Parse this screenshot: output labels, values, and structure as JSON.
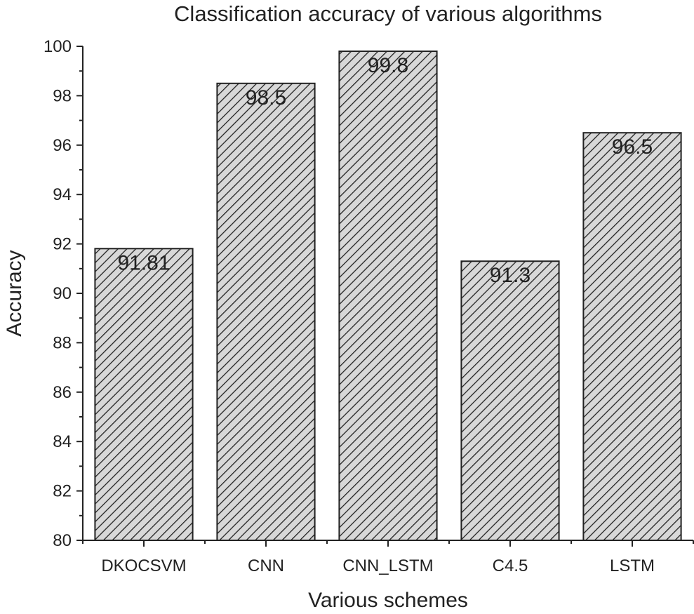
{
  "chart_data": {
    "type": "bar",
    "title": "Classification accuracy of various algorithms",
    "xlabel": "Various schemes",
    "ylabel": "Accuracy",
    "categories": [
      "DKOCSVM",
      "CNN",
      "CNN_LSTM",
      "C4.5",
      "LSTM"
    ],
    "values": [
      91.81,
      98.5,
      99.8,
      91.3,
      96.5
    ],
    "value_labels": [
      "91.81",
      "98.5",
      "99.8",
      "91.3",
      "96.5"
    ],
    "ylim": [
      80,
      100
    ],
    "yticks": [
      80,
      82,
      84,
      86,
      88,
      90,
      92,
      94,
      96,
      98,
      100
    ],
    "grid": false,
    "bar_fill": "#d8d8d8",
    "hatch_color": "#222222"
  }
}
